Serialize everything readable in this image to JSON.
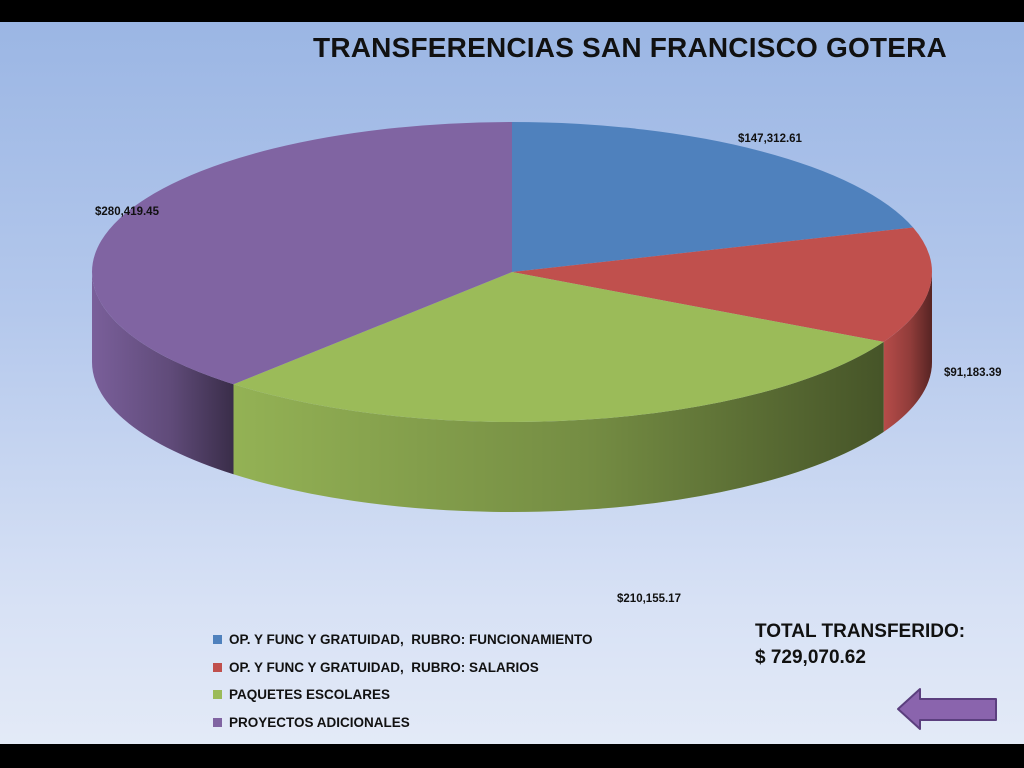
{
  "slide": {
    "title": "TRANSFERENCIAS SAN FRANCISCO GOTERA",
    "total_label": "TOTAL TRANSFERIDO:",
    "total_value": "$ 729,070.62",
    "back_button_icon": "left-arrow-icon"
  },
  "chart_data": {
    "type": "pie",
    "style": "3d",
    "title": "TRANSFERENCIAS SAN FRANCISCO GOTERA",
    "legend_position": "bottom",
    "slices": [
      {
        "name": "OP. Y FUNC Y GRATUIDAD,  RUBRO: FUNCIONAMIENTO",
        "value": 147312.61,
        "label": "$147,312.61",
        "color": "#4f81bd"
      },
      {
        "name": "OP. Y FUNC Y GRATUIDAD,  RUBRO: SALARIOS",
        "value": 91183.39,
        "label": "$91,183.39",
        "color": "#c0504d"
      },
      {
        "name": "PAQUETES ESCOLARES",
        "value": 210155.17,
        "label": "$210,155.17",
        "color": "#9bbb59"
      },
      {
        "name": "PROYECTOS ADICIONALES",
        "value": 280419.45,
        "label": "$280,419.45",
        "color": "#8064a2"
      }
    ]
  }
}
